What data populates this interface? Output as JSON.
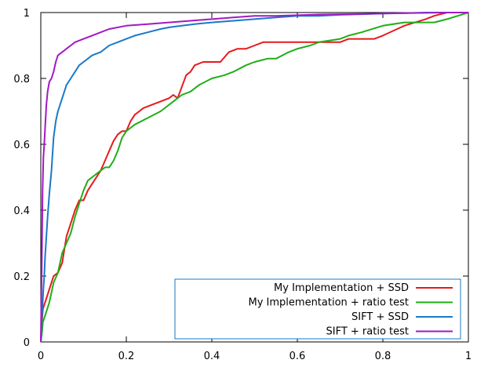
{
  "chart_data": {
    "type": "line",
    "title": "",
    "xlabel": "",
    "ylabel": "",
    "xlim": [
      0,
      1
    ],
    "ylim": [
      0,
      1
    ],
    "grid": false,
    "legend_position": "bottom-right",
    "xticks": [
      "0",
      "0.2",
      "0.4",
      "0.6",
      "0.8",
      "1"
    ],
    "yticks": [
      "0",
      "0.2",
      "0.4",
      "0.6",
      "0.8",
      "1"
    ],
    "series": [
      {
        "name": "My Implementation + SSD",
        "color": "#e8191c",
        "x": [
          0.0,
          0.002,
          0.005,
          0.01,
          0.015,
          0.02,
          0.025,
          0.03,
          0.04,
          0.05,
          0.055,
          0.06,
          0.07,
          0.08,
          0.09,
          0.1,
          0.11,
          0.12,
          0.13,
          0.14,
          0.15,
          0.16,
          0.17,
          0.18,
          0.19,
          0.2,
          0.21,
          0.22,
          0.23,
          0.24,
          0.26,
          0.28,
          0.3,
          0.31,
          0.32,
          0.34,
          0.35,
          0.36,
          0.38,
          0.39,
          0.42,
          0.44,
          0.46,
          0.48,
          0.5,
          0.52,
          0.55,
          0.6,
          0.65,
          0.7,
          0.72,
          0.75,
          0.78,
          0.8,
          0.85,
          0.9,
          0.92,
          0.95,
          1.0
        ],
        "y": [
          0.0,
          0.05,
          0.1,
          0.12,
          0.14,
          0.16,
          0.18,
          0.2,
          0.21,
          0.24,
          0.28,
          0.32,
          0.36,
          0.4,
          0.43,
          0.43,
          0.46,
          0.48,
          0.5,
          0.52,
          0.55,
          0.58,
          0.61,
          0.63,
          0.64,
          0.64,
          0.67,
          0.69,
          0.7,
          0.71,
          0.72,
          0.73,
          0.74,
          0.75,
          0.74,
          0.81,
          0.82,
          0.84,
          0.85,
          0.85,
          0.85,
          0.88,
          0.89,
          0.89,
          0.9,
          0.91,
          0.91,
          0.91,
          0.91,
          0.91,
          0.92,
          0.92,
          0.92,
          0.93,
          0.96,
          0.98,
          0.99,
          1.0,
          1.0
        ]
      },
      {
        "name": "My Implementation + ratio test",
        "color": "#1fae19",
        "x": [
          0.0,
          0.003,
          0.005,
          0.01,
          0.02,
          0.03,
          0.04,
          0.05,
          0.06,
          0.07,
          0.08,
          0.09,
          0.1,
          0.11,
          0.12,
          0.13,
          0.14,
          0.15,
          0.16,
          0.17,
          0.18,
          0.19,
          0.2,
          0.22,
          0.25,
          0.28,
          0.31,
          0.33,
          0.35,
          0.37,
          0.4,
          0.43,
          0.45,
          0.48,
          0.5,
          0.53,
          0.55,
          0.58,
          0.6,
          0.63,
          0.65,
          0.7,
          0.72,
          0.75,
          0.8,
          0.85,
          0.88,
          0.9,
          0.92,
          0.95,
          1.0
        ],
        "y": [
          0.0,
          0.03,
          0.06,
          0.08,
          0.12,
          0.18,
          0.21,
          0.27,
          0.3,
          0.33,
          0.38,
          0.42,
          0.46,
          0.49,
          0.5,
          0.51,
          0.52,
          0.53,
          0.53,
          0.55,
          0.58,
          0.62,
          0.64,
          0.66,
          0.68,
          0.7,
          0.73,
          0.75,
          0.76,
          0.78,
          0.8,
          0.81,
          0.82,
          0.84,
          0.85,
          0.86,
          0.86,
          0.88,
          0.89,
          0.9,
          0.91,
          0.92,
          0.93,
          0.94,
          0.96,
          0.97,
          0.97,
          0.97,
          0.97,
          0.98,
          1.0
        ]
      },
      {
        "name": "SIFT + SSD",
        "color": "#1a79c7",
        "x": [
          0.0,
          0.002,
          0.004,
          0.006,
          0.008,
          0.01,
          0.013,
          0.016,
          0.02,
          0.025,
          0.03,
          0.035,
          0.04,
          0.05,
          0.06,
          0.07,
          0.08,
          0.09,
          0.1,
          0.11,
          0.12,
          0.14,
          0.16,
          0.18,
          0.2,
          0.22,
          0.25,
          0.28,
          0.3,
          0.33,
          0.36,
          0.4,
          0.45,
          0.5,
          0.55,
          0.6,
          0.65,
          0.7,
          0.75,
          0.8,
          0.85,
          0.9,
          0.95,
          1.0
        ],
        "y": [
          0.0,
          0.06,
          0.11,
          0.16,
          0.2,
          0.26,
          0.32,
          0.38,
          0.45,
          0.52,
          0.62,
          0.67,
          0.7,
          0.74,
          0.78,
          0.8,
          0.82,
          0.84,
          0.85,
          0.86,
          0.87,
          0.88,
          0.9,
          0.91,
          0.92,
          0.93,
          0.94,
          0.95,
          0.955,
          0.96,
          0.965,
          0.97,
          0.975,
          0.98,
          0.985,
          0.99,
          0.99,
          0.993,
          0.995,
          0.997,
          0.998,
          1.0,
          1.0,
          1.0
        ]
      },
      {
        "name": "SIFT + ratio test",
        "color": "#a219c6",
        "x": [
          0.0,
          0.002,
          0.004,
          0.006,
          0.008,
          0.01,
          0.013,
          0.016,
          0.02,
          0.025,
          0.03,
          0.035,
          0.04,
          0.05,
          0.06,
          0.07,
          0.08,
          0.1,
          0.12,
          0.14,
          0.16,
          0.2,
          0.25,
          0.3,
          0.35,
          0.4,
          0.45,
          0.5,
          0.55,
          0.6,
          0.65,
          0.7,
          0.75,
          0.8,
          0.85,
          0.9,
          0.95,
          1.0
        ],
        "y": [
          0.0,
          0.2,
          0.45,
          0.56,
          0.6,
          0.65,
          0.72,
          0.76,
          0.79,
          0.8,
          0.82,
          0.85,
          0.87,
          0.88,
          0.89,
          0.9,
          0.91,
          0.92,
          0.93,
          0.94,
          0.95,
          0.96,
          0.965,
          0.97,
          0.975,
          0.98,
          0.985,
          0.99,
          0.99,
          0.992,
          0.994,
          0.995,
          0.996,
          0.997,
          0.998,
          0.999,
          1.0,
          1.0
        ]
      }
    ]
  }
}
